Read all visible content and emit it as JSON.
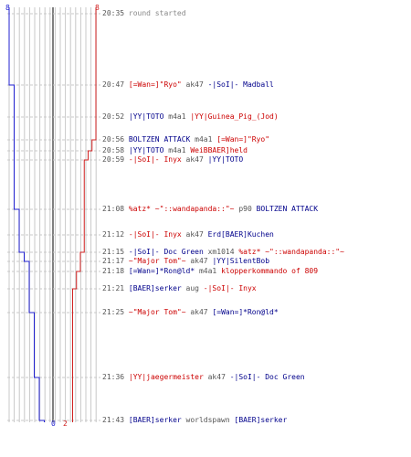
{
  "colors": {
    "team_a": "#2020d0",
    "team_b": "#d02020",
    "team_a_text": "#00008b",
    "team_b_text": "#cc0000",
    "time": "#555555",
    "grid": "#c8c8c8",
    "center": "#808080"
  },
  "counts": {
    "blue_start": "8",
    "red_start": "8",
    "blue_end": "0",
    "red_end": "2"
  },
  "chart_data": {
    "type": "line",
    "max_players": 8,
    "series": [
      {
        "values": [
          8,
          7,
          7,
          7,
          7,
          7,
          6,
          6,
          5,
          4,
          4,
          4,
          3,
          2,
          1,
          1,
          0
        ]
      },
      {
        "values": [
          8,
          8,
          8,
          7,
          6,
          5,
          5,
          5,
          4,
          4,
          3,
          2,
          2,
          2,
          2,
          2,
          2
        ]
      }
    ]
  },
  "events": [
    {
      "time": "20:35",
      "parts": [
        {
          "text": "round started",
          "c": "grey"
        }
      ]
    },
    {
      "time": "20:47",
      "parts": [
        {
          "text": "[=Wan=]\"Ryo\"",
          "c": "red"
        },
        {
          "text": " ak47 ",
          "c": "t"
        },
        {
          "text": "-|SoI|- Madball",
          "c": "blue"
        }
      ]
    },
    {
      "time": "20:52",
      "parts": [
        {
          "text": "|YY|TOTO",
          "c": "blue"
        },
        {
          "text": " m4a1 ",
          "c": "t"
        },
        {
          "text": "|YY|Guinea_Pig_(Jod)",
          "c": "red"
        }
      ]
    },
    {
      "time": "20:56",
      "parts": [
        {
          "text": "BOLTZEN ATTACK",
          "c": "blue"
        },
        {
          "text": " m4a1 ",
          "c": "t"
        },
        {
          "text": "[=Wan=]\"Ryo\"",
          "c": "red"
        }
      ]
    },
    {
      "time": "20:58",
      "parts": [
        {
          "text": "|YY|TOTO",
          "c": "blue"
        },
        {
          "text": " m4a1 ",
          "c": "t"
        },
        {
          "text": "WeiBBAER]held",
          "c": "red"
        }
      ]
    },
    {
      "time": "20:59",
      "parts": [
        {
          "text": "-|SoI|- Inyx",
          "c": "red"
        },
        {
          "text": " ak47 ",
          "c": "t"
        },
        {
          "text": "|YY|TOTO",
          "c": "blue"
        }
      ]
    },
    {
      "time": "21:08",
      "parts": [
        {
          "text": "%atz* ~\"::wandapanda::\"~",
          "c": "red"
        },
        {
          "text": " p90 ",
          "c": "t"
        },
        {
          "text": "BOLTZEN ATTACK",
          "c": "blue"
        }
      ]
    },
    {
      "time": "21:12",
      "parts": [
        {
          "text": "-|SoI|- Inyx",
          "c": "red"
        },
        {
          "text": " ak47 ",
          "c": "t"
        },
        {
          "text": "Erd[BAER]Kuchen",
          "c": "blue"
        }
      ]
    },
    {
      "time": "21:15",
      "parts": [
        {
          "text": "-|SoI|- Doc Green",
          "c": "blue"
        },
        {
          "text": " xm1014 ",
          "c": "t"
        },
        {
          "text": "%atz* ~\"::wandapanda::\"~",
          "c": "red"
        }
      ]
    },
    {
      "time": "21:17",
      "parts": [
        {
          "text": "~\"Major Tom\"~",
          "c": "red"
        },
        {
          "text": " ak47 ",
          "c": "t"
        },
        {
          "text": "|YY|SilentBob",
          "c": "blue"
        }
      ]
    },
    {
      "time": "21:18",
      "parts": [
        {
          "text": "[=Wan=]*Ron@ld*",
          "c": "blue"
        },
        {
          "text": " m4a1 ",
          "c": "t"
        },
        {
          "text": "klopperkommando of 809",
          "c": "red"
        }
      ]
    },
    {
      "time": "21:21",
      "parts": [
        {
          "text": "[BAER]serker",
          "c": "blue"
        },
        {
          "text": " aug ",
          "c": "t"
        },
        {
          "text": "-|SoI|- Inyx",
          "c": "red"
        }
      ]
    },
    {
      "time": "21:25",
      "parts": [
        {
          "text": "~\"Major Tom\"~",
          "c": "red"
        },
        {
          "text": " ak47 ",
          "c": "t"
        },
        {
          "text": "[=Wan=]*Ron@ld*",
          "c": "blue"
        }
      ]
    },
    {
      "time": "21:36",
      "parts": [
        {
          "text": "|YY|jaegermeister",
          "c": "red"
        },
        {
          "text": " ak47 ",
          "c": "t"
        },
        {
          "text": "-|SoI|- Doc Green",
          "c": "blue"
        }
      ]
    },
    {
      "time": "21:43",
      "parts": [
        {
          "text": "[BAER]serker",
          "c": "blue"
        },
        {
          "text": " worldspawn ",
          "c": "t"
        },
        {
          "text": "[BAER]serker",
          "c": "blue"
        }
      ]
    }
  ]
}
